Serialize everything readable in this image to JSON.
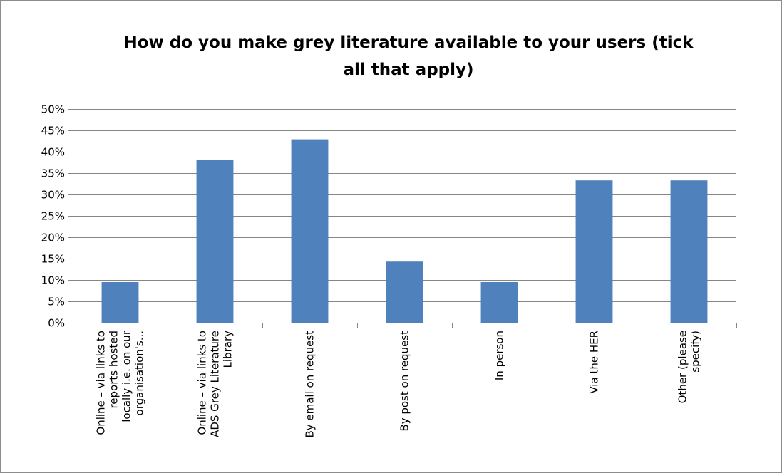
{
  "chart_data": {
    "type": "bar",
    "title_lines": [
      "How do you make grey literature available to your users (tick",
      "all that apply)"
    ],
    "categories": [
      [
        "Online – via links to",
        "reports hosted",
        "locally i.e. on our",
        "organisation's..."
      ],
      [
        "Online – via links to",
        "ADS Grey Literature",
        "Library"
      ],
      [
        "By email on request"
      ],
      [
        "By post on request"
      ],
      [
        "In person"
      ],
      [
        "Via the HER"
      ],
      [
        "Other (please",
        "specify)"
      ]
    ],
    "values": [
      0.095,
      0.381,
      0.429,
      0.143,
      0.095,
      0.333,
      0.333
    ],
    "ylim": [
      0,
      0.5
    ],
    "yticks": [
      0,
      0.05,
      0.1,
      0.15,
      0.2,
      0.25,
      0.3,
      0.35,
      0.4,
      0.45,
      0.5
    ],
    "ytick_labels": [
      "0%",
      "5%",
      "10%",
      "15%",
      "20%",
      "25%",
      "30%",
      "35%",
      "40%",
      "45%",
      "50%"
    ],
    "grid": true,
    "legend": "none",
    "colors": {
      "bar": "#4f81bd",
      "grid": "#868686",
      "axis": "#868686"
    }
  }
}
